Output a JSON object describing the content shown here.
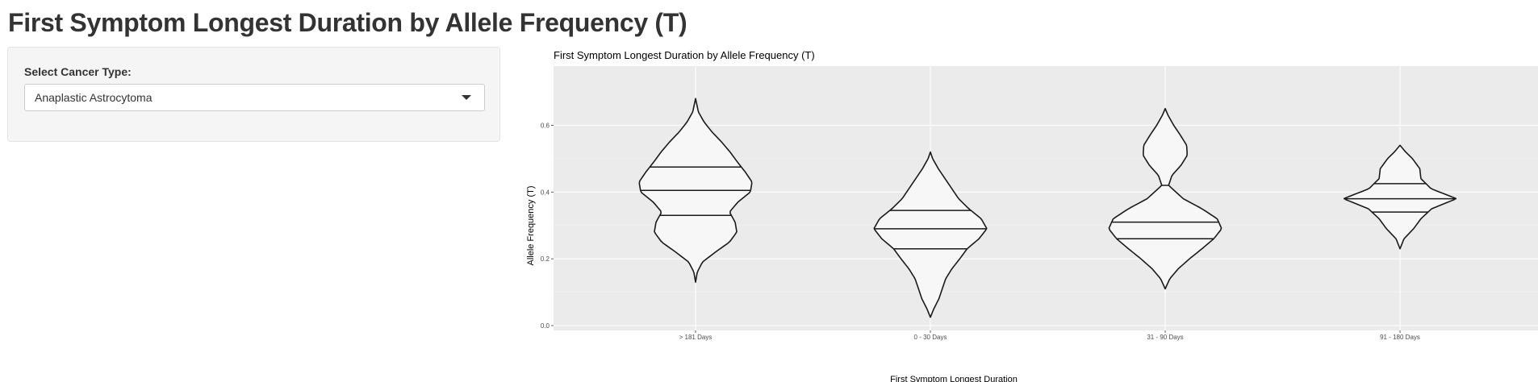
{
  "page": {
    "title": "First Symptom Longest Duration by Allele Frequency (T)"
  },
  "sidebar": {
    "select_label": "Select Cancer Type:",
    "selected_value": "Anaplastic Astrocytoma"
  },
  "colors": {
    "panel_background": "#ebebeb",
    "grid_major": "#ffffff",
    "violin_fill": "#f7f7f7",
    "violin_stroke": "#1a1a1a"
  },
  "chart_data": {
    "type": "violin",
    "title": "First Symptom Longest Duration by Allele Frequency (T)",
    "xlabel": "First Symptom Longest Duration",
    "ylabel": "Allele Frequency (T)",
    "ylim": [
      0.0,
      0.7
    ],
    "yticks": [
      "0.0",
      "0.2",
      "0.4",
      "0.6"
    ],
    "categories": [
      "> 181 Days",
      "0 - 30 Days",
      "31 - 90 Days",
      "91 - 180 Days"
    ],
    "grid": true,
    "violins": [
      {
        "category": "> 181 Days",
        "min": 0.13,
        "max": 0.68,
        "quantiles": [
          0.33,
          0.405,
          0.475
        ],
        "profile": [
          [
            0.13,
            0.0
          ],
          [
            0.16,
            0.03
          ],
          [
            0.19,
            0.12
          ],
          [
            0.22,
            0.35
          ],
          [
            0.25,
            0.6
          ],
          [
            0.28,
            0.73
          ],
          [
            0.31,
            0.7
          ],
          [
            0.34,
            0.6
          ],
          [
            0.37,
            0.75
          ],
          [
            0.4,
            0.97
          ],
          [
            0.43,
            1.0
          ],
          [
            0.46,
            0.88
          ],
          [
            0.49,
            0.74
          ],
          [
            0.52,
            0.61
          ],
          [
            0.55,
            0.46
          ],
          [
            0.58,
            0.29
          ],
          [
            0.61,
            0.15
          ],
          [
            0.64,
            0.05
          ],
          [
            0.68,
            0.0
          ]
        ]
      },
      {
        "category": "0 - 30 Days",
        "min": 0.025,
        "max": 0.52,
        "quantiles": [
          0.23,
          0.29,
          0.345
        ],
        "profile": [
          [
            0.025,
            0.0
          ],
          [
            0.05,
            0.06
          ],
          [
            0.08,
            0.15
          ],
          [
            0.11,
            0.21
          ],
          [
            0.14,
            0.27
          ],
          [
            0.17,
            0.38
          ],
          [
            0.2,
            0.52
          ],
          [
            0.23,
            0.65
          ],
          [
            0.26,
            0.86
          ],
          [
            0.29,
            1.0
          ],
          [
            0.32,
            0.9
          ],
          [
            0.35,
            0.68
          ],
          [
            0.38,
            0.5
          ],
          [
            0.41,
            0.38
          ],
          [
            0.44,
            0.26
          ],
          [
            0.47,
            0.14
          ],
          [
            0.5,
            0.04
          ],
          [
            0.52,
            0.0
          ]
        ]
      },
      {
        "category": "31 - 90 Days",
        "min": 0.11,
        "max": 0.65,
        "quantiles": [
          0.26,
          0.31,
          0.42
        ],
        "profile": [
          [
            0.11,
            0.0
          ],
          [
            0.14,
            0.08
          ],
          [
            0.17,
            0.23
          ],
          [
            0.2,
            0.43
          ],
          [
            0.23,
            0.65
          ],
          [
            0.26,
            0.86
          ],
          [
            0.29,
            1.0
          ],
          [
            0.32,
            0.92
          ],
          [
            0.35,
            0.65
          ],
          [
            0.38,
            0.32
          ],
          [
            0.42,
            0.06
          ],
          [
            0.45,
            0.12
          ],
          [
            0.48,
            0.28
          ],
          [
            0.51,
            0.39
          ],
          [
            0.54,
            0.38
          ],
          [
            0.57,
            0.27
          ],
          [
            0.6,
            0.15
          ],
          [
            0.63,
            0.05
          ],
          [
            0.65,
            0.0
          ]
        ]
      },
      {
        "category": "91 - 180 Days",
        "min": 0.23,
        "max": 0.54,
        "quantiles": [
          0.34,
          0.38,
          0.425
        ],
        "profile": [
          [
            0.23,
            0.0
          ],
          [
            0.26,
            0.07
          ],
          [
            0.29,
            0.24
          ],
          [
            0.32,
            0.37
          ],
          [
            0.35,
            0.56
          ],
          [
            0.38,
            1.0
          ],
          [
            0.41,
            0.55
          ],
          [
            0.44,
            0.37
          ],
          [
            0.47,
            0.35
          ],
          [
            0.5,
            0.22
          ],
          [
            0.52,
            0.1
          ],
          [
            0.54,
            0.0
          ]
        ]
      }
    ]
  }
}
